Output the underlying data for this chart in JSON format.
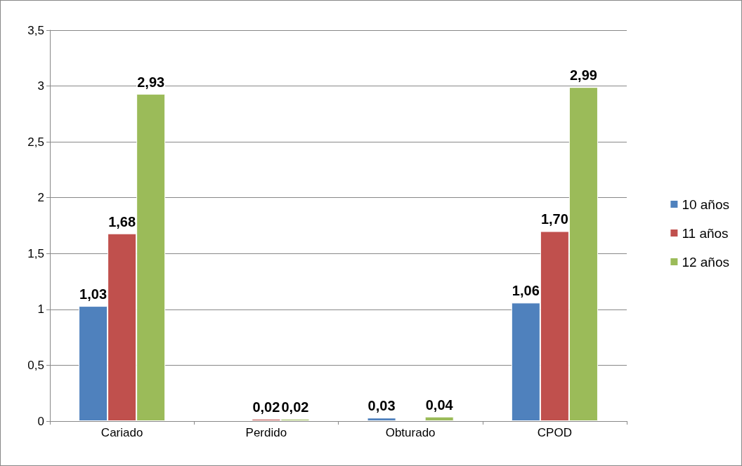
{
  "chart_data": {
    "type": "bar",
    "categories": [
      "Cariado",
      "Perdido",
      "Obturado",
      "CPOD"
    ],
    "series": [
      {
        "name": "10 años",
        "color": "#4f81bd",
        "values": [
          1.03,
          null,
          0.03,
          1.06
        ],
        "value_labels": [
          "1,03",
          null,
          "0,03",
          "1,06"
        ]
      },
      {
        "name": "11 años",
        "color": "#c0504d",
        "values": [
          1.68,
          0.02,
          null,
          1.7
        ],
        "value_labels": [
          "1,68",
          "0,02",
          null,
          "1,70"
        ]
      },
      {
        "name": "12 años",
        "color": "#9bbb59",
        "values": [
          2.93,
          0.02,
          0.04,
          2.99
        ],
        "value_labels": [
          "2,93",
          "0,02",
          "0,04",
          "2,99"
        ]
      }
    ],
    "ylim": [
      0,
      3.5
    ],
    "yticks": [
      0,
      {
        "value": 0.5,
        "label": "0,5"
      },
      1,
      {
        "value": 1.5,
        "label": "1,5"
      },
      2,
      {
        "value": 2.5,
        "label": "2,5"
      },
      3,
      {
        "value": 3.5,
        "label": "3,5"
      }
    ],
    "grid": "y",
    "legend": "right"
  }
}
